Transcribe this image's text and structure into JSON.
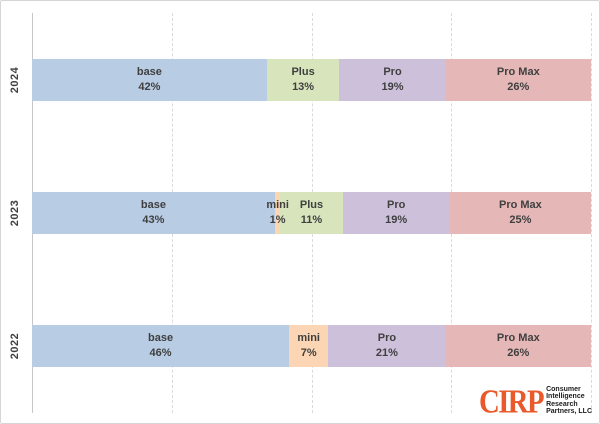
{
  "chart_data": {
    "type": "bar",
    "orientation": "horizontal-stacked",
    "title": "",
    "xlabel": "",
    "ylabel": "",
    "xlim": [
      0,
      100
    ],
    "grid": "dashed-vertical",
    "gridlines_percent": [
      0,
      25,
      50,
      75,
      100
    ],
    "categories": [
      "2024",
      "2023",
      "2022"
    ],
    "legend": [
      "base",
      "mini",
      "Plus",
      "Pro",
      "Pro Max"
    ],
    "colors": {
      "base": "#b8cce4",
      "mini": "#fbd5b4",
      "Plus": "#d7e4bc",
      "Pro": "#ccc0da",
      "Pro Max": "#e5b8b7"
    },
    "rows": [
      {
        "year": "2024",
        "segments": [
          {
            "label": "base",
            "value": 42,
            "display": "42%",
            "color": "#b8cce4"
          },
          {
            "label": "Plus",
            "value": 13,
            "display": "13%",
            "color": "#d7e4bc"
          },
          {
            "label": "Pro",
            "value": 19,
            "display": "19%",
            "color": "#ccc0da"
          },
          {
            "label": "Pro Max",
            "value": 26,
            "display": "26%",
            "color": "#e5b8b7"
          }
        ]
      },
      {
        "year": "2023",
        "segments": [
          {
            "label": "base",
            "value": 43,
            "display": "43%",
            "color": "#b8cce4"
          },
          {
            "label": "mini",
            "value": 1,
            "display": "1%",
            "color": "#fbd5b4"
          },
          {
            "label": "Plus",
            "value": 11,
            "display": "11%",
            "color": "#d7e4bc"
          },
          {
            "label": "Pro",
            "value": 19,
            "display": "19%",
            "color": "#ccc0da"
          },
          {
            "label": "Pro Max",
            "value": 25,
            "display": "25%",
            "color": "#e5b8b7"
          }
        ]
      },
      {
        "year": "2022",
        "segments": [
          {
            "label": "base",
            "value": 46,
            "display": "46%",
            "color": "#b8cce4"
          },
          {
            "label": "mini",
            "value": 7,
            "display": "7%",
            "color": "#fbd5b4"
          },
          {
            "label": "Pro",
            "value": 21,
            "display": "21%",
            "color": "#ccc0da"
          },
          {
            "label": "Pro Max",
            "value": 26,
            "display": "26%",
            "color": "#e5b8b7"
          }
        ]
      }
    ]
  },
  "logo": {
    "abbr": "CIRP",
    "color": "#e9592b",
    "lines": [
      "Consumer",
      "Intelligence",
      "Research",
      "Partners, LLC"
    ]
  }
}
